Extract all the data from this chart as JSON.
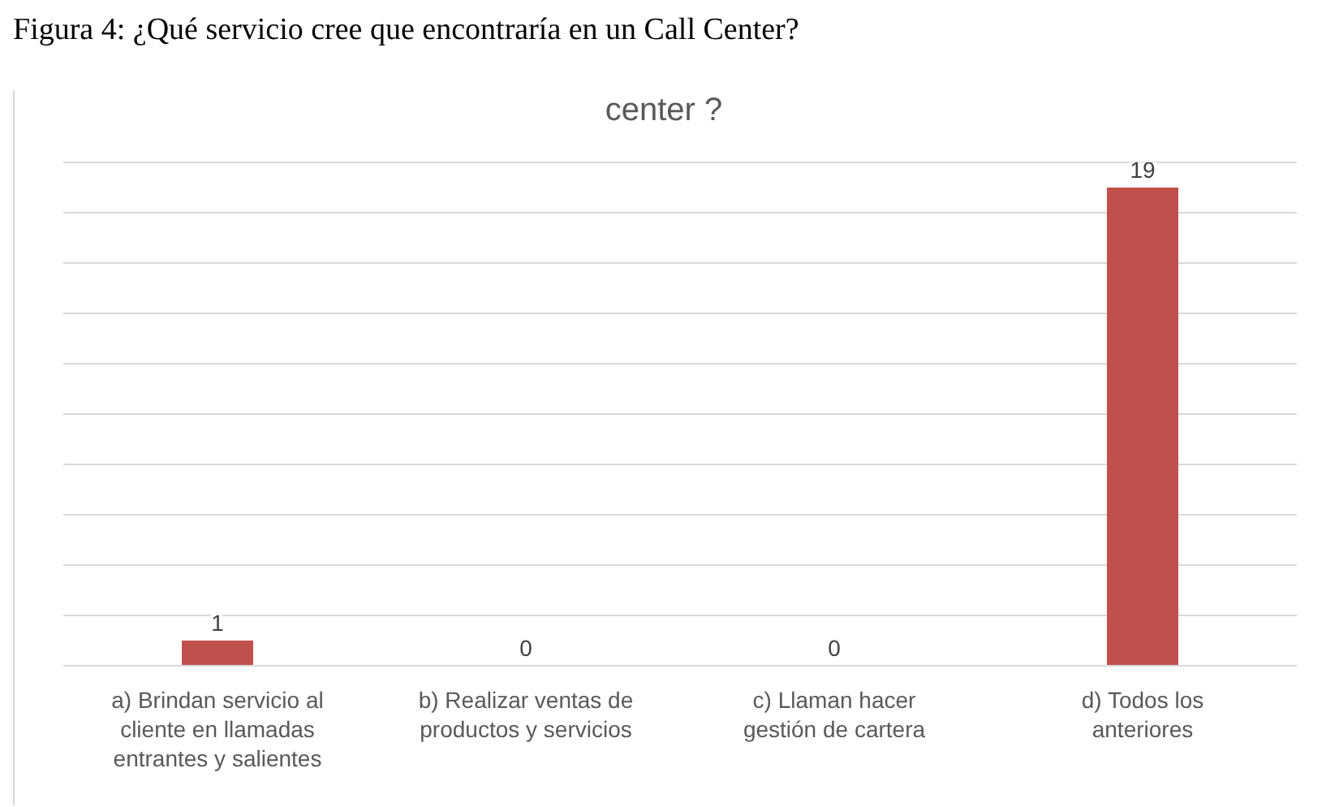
{
  "chart_data": {
    "type": "bar",
    "title": "Figura 4: ¿Qué servicio cree que encontraría en un Call Center?",
    "subtitle": "center ?",
    "categories": [
      "a) Brindan servicio al cliente en llamadas entrantes y salientes",
      "b) Realizar ventas de productos y servicios",
      "c) Llaman hacer gestión de cartera",
      "d) Todos los anteriores"
    ],
    "values": [
      1,
      0,
      0,
      19
    ],
    "color": "#c0504d",
    "data_labels": true,
    "ylim": [
      0,
      20
    ],
    "yticks": [
      {
        "value": 0,
        "label": null
      },
      {
        "value": 2,
        "label": null
      },
      {
        "value": 4,
        "label": null
      },
      {
        "value": 6,
        "label": null
      },
      {
        "value": 8,
        "label": null
      },
      {
        "value": 10,
        "label": null
      },
      {
        "value": 12,
        "label": null
      },
      {
        "value": 14,
        "label": null
      },
      {
        "value": 16,
        "label": null
      },
      {
        "value": 18,
        "label": null
      },
      {
        "value": 20,
        "label": null
      }
    ],
    "grid": "y",
    "tick_labels": "x",
    "legend": false
  }
}
